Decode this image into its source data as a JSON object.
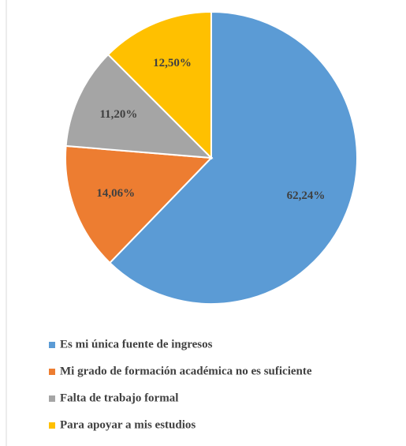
{
  "chart_data": {
    "type": "pie",
    "categories": [
      "Es mi única fuente de ingresos",
      "Mi grado de formación académica no es suficiente",
      "Falta de trabajo formal",
      "Para apoyar a mis estudios"
    ],
    "values": [
      62.24,
      14.06,
      11.2,
      12.5
    ],
    "value_labels": [
      "62,24%",
      "14,06%",
      "11,20%",
      "12,50%"
    ],
    "colors": [
      "#5b9bd5",
      "#ed7d31",
      "#a5a5a5",
      "#ffc000"
    ],
    "legend": "bottom"
  }
}
